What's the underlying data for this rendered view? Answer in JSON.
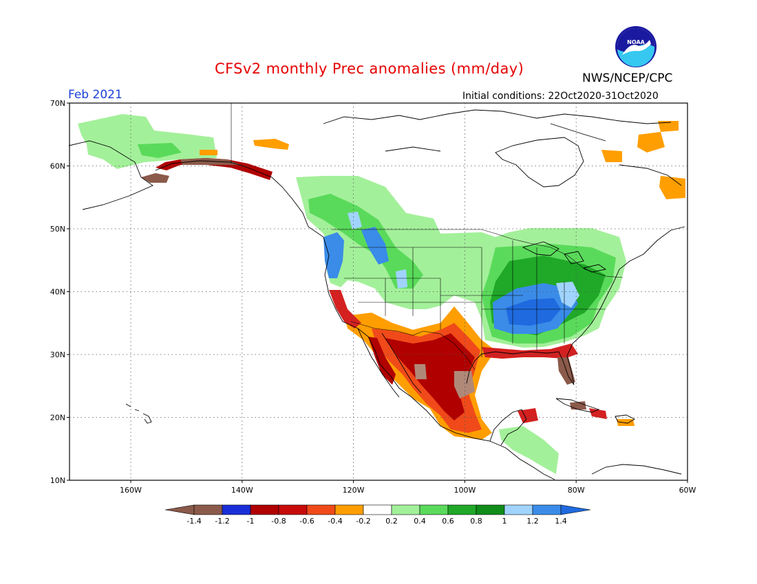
{
  "title": "CFSv2 monthly Prec anomalies (mm/day)",
  "organization": "NWS/NCEP/CPC",
  "logo_text": "NOAA",
  "period": "Feb 2021",
  "initial_conditions": "Initial conditions: 22Oct2020-31Oct2020",
  "map": {
    "lon_range": [
      -171,
      -60
    ],
    "lat_range": [
      10,
      70
    ],
    "lat_ticks": [
      {
        "value": 70,
        "label": "70N"
      },
      {
        "value": 60,
        "label": "60N"
      },
      {
        "value": 50,
        "label": "50N"
      },
      {
        "value": 40,
        "label": "40N"
      },
      {
        "value": 30,
        "label": "30N"
      },
      {
        "value": 20,
        "label": "20N"
      },
      {
        "value": 10,
        "label": "10N"
      }
    ],
    "lon_ticks": [
      {
        "value": -160,
        "label": "160W"
      },
      {
        "value": -140,
        "label": "140W"
      },
      {
        "value": -120,
        "label": "120W"
      },
      {
        "value": -100,
        "label": "100W"
      },
      {
        "value": -80,
        "label": "80W"
      },
      {
        "value": -60,
        "label": "60W"
      }
    ],
    "grid": "dotted"
  },
  "colors": {
    "brown": "#8b5a4a",
    "lt_brown": "#b08878",
    "dk_blue": "#1a2fd8",
    "dk_red": "#b00000",
    "red": "#d42020",
    "orange_red": "#f04a1a",
    "orange": "#ff9e00",
    "lt_green": "#a3f09a",
    "green": "#5ada5a",
    "dk_green": "#20a828",
    "dkr_green": "#108c18",
    "lt_blue": "#a0d4ff",
    "blue": "#3a8ce8",
    "mid_blue": "#1f6adf"
  },
  "colorbar": {
    "labels": [
      "-1.4",
      "-1.2",
      "-1",
      "-0.8",
      "-0.6",
      "-0.4",
      "-0.2",
      "0.2",
      "0.4",
      "0.6",
      "0.8",
      "1",
      "1.2",
      "1.4"
    ],
    "colors": [
      "#8b5a4a",
      "#1a2fd8",
      "#b00000",
      "#c80a0a",
      "#f04a1a",
      "#ff9e00",
      "#ffffff",
      "#a3f09a",
      "#5ada5a",
      "#20a828",
      "#108c18",
      "#a0d4ff",
      "#3a8ce8"
    ],
    "low_end_color": "#8b5a4a",
    "high_end_color": "#1f6adf"
  }
}
